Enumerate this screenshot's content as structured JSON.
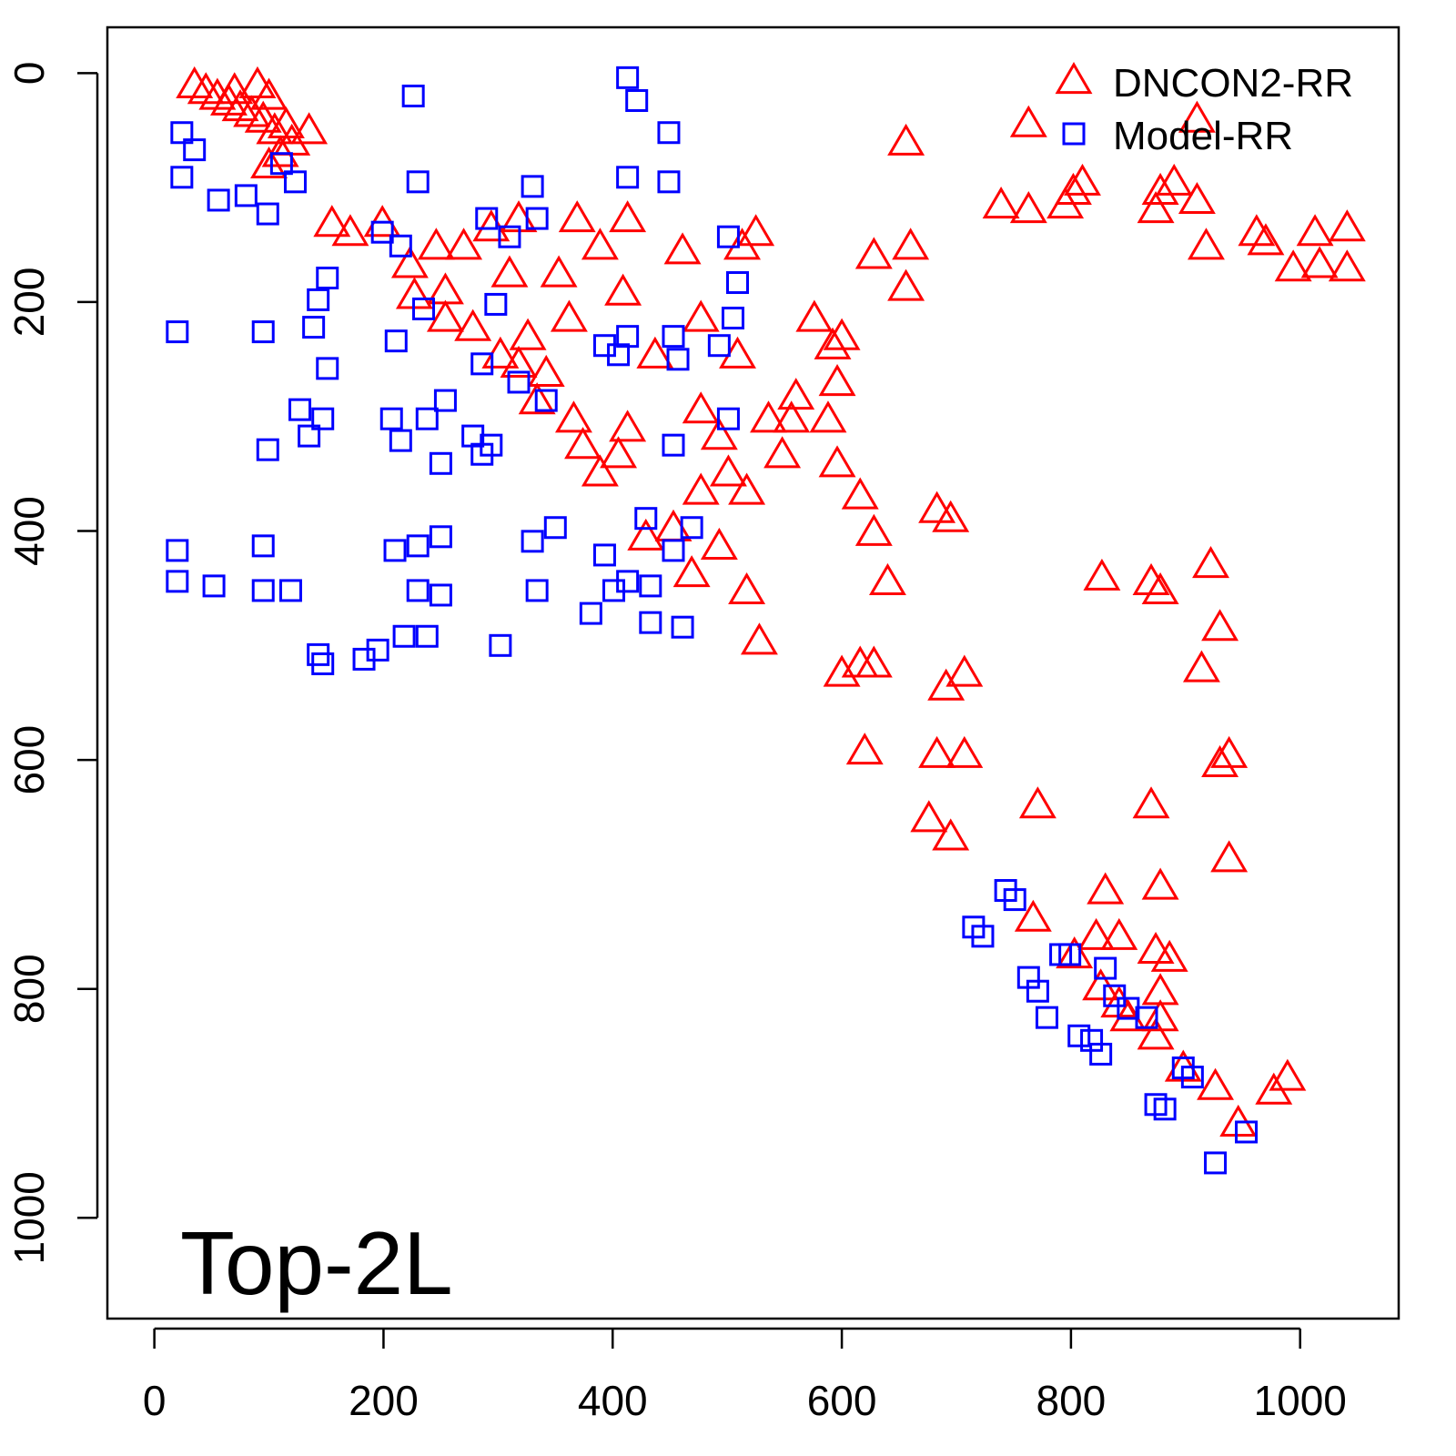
{
  "chart_data": {
    "type": "scatter",
    "title": "",
    "annotation": "Top-2L",
    "xlabel": "",
    "ylabel": "",
    "xlim": [
      -41,
      1086
    ],
    "ylim": [
      1088,
      -40
    ],
    "y_inverted": true,
    "grid": false,
    "legend_placement": "top-right",
    "xticks": [
      0,
      200,
      400,
      600,
      800,
      1000
    ],
    "yticks": [
      0,
      200,
      400,
      600,
      800,
      1000
    ],
    "xtick_labels": [
      "0",
      "200",
      "400",
      "600",
      "800",
      "1000"
    ],
    "ytick_labels": [
      "0",
      "200",
      "400",
      "600",
      "800",
      "1000"
    ],
    "series": [
      {
        "name": "DNCON2-RR",
        "marker": "triangle",
        "color": "#ff0000",
        "points": [
          [
            35,
            10
          ],
          [
            45,
            15
          ],
          [
            55,
            20
          ],
          [
            65,
            25
          ],
          [
            75,
            30
          ],
          [
            85,
            35
          ],
          [
            95,
            40
          ],
          [
            100,
            20
          ],
          [
            105,
            50
          ],
          [
            115,
            45
          ],
          [
            120,
            60
          ],
          [
            135,
            50
          ],
          [
            90,
            10
          ],
          [
            70,
            15
          ],
          [
            110,
            70
          ],
          [
            100,
            80
          ],
          [
            763,
            44
          ],
          [
            656,
            60
          ],
          [
            910,
            40
          ],
          [
            890,
            95
          ],
          [
            810,
            95
          ],
          [
            802,
            103
          ],
          [
            739,
            115
          ],
          [
            763,
            119
          ],
          [
            795,
            115
          ],
          [
            878,
            103
          ],
          [
            874,
            119
          ],
          [
            910,
            111
          ],
          [
            918,
            151
          ],
          [
            970,
            147
          ],
          [
            962,
            139
          ],
          [
            994,
            170
          ],
          [
            1013,
            139
          ],
          [
            1017,
            167
          ],
          [
            1041,
            135
          ],
          [
            1041,
            170
          ],
          [
            628,
            159
          ],
          [
            660,
            151
          ],
          [
            656,
            187
          ],
          [
            525,
            139
          ],
          [
            513,
            151
          ],
          [
            461,
            155
          ],
          [
            477,
            214
          ],
          [
            509,
            246
          ],
          [
            413,
            127
          ],
          [
            389,
            151
          ],
          [
            369,
            127
          ],
          [
            353,
            175
          ],
          [
            310,
            175
          ],
          [
            318,
            127
          ],
          [
            294,
            135
          ],
          [
            270,
            151
          ],
          [
            246,
            151
          ],
          [
            199,
            131
          ],
          [
            171,
            139
          ],
          [
            155,
            131
          ],
          [
            223,
            167
          ],
          [
            227,
            194
          ],
          [
            254,
            214
          ],
          [
            278,
            222
          ],
          [
            302,
            246
          ],
          [
            326,
            230
          ],
          [
            342,
            262
          ],
          [
            362,
            214
          ],
          [
            334,
            286
          ],
          [
            318,
            254
          ],
          [
            366,
            302
          ],
          [
            374,
            325
          ],
          [
            389,
            349
          ],
          [
            405,
            333
          ],
          [
            413,
            310
          ],
          [
            409,
            191
          ],
          [
            437,
            246
          ],
          [
            477,
            294
          ],
          [
            493,
            317
          ],
          [
            501,
            349
          ],
          [
            517,
            365
          ],
          [
            536,
            302
          ],
          [
            556,
            302
          ],
          [
            560,
            282
          ],
          [
            548,
            333
          ],
          [
            588,
            302
          ],
          [
            576,
            214
          ],
          [
            592,
            238
          ],
          [
            600,
            230
          ],
          [
            596,
            270
          ],
          [
            596,
            341
          ],
          [
            616,
            369
          ],
          [
            628,
            401
          ],
          [
            640,
            444
          ],
          [
            477,
            365
          ],
          [
            453,
            397
          ],
          [
            429,
            405
          ],
          [
            469,
            437
          ],
          [
            493,
            413
          ],
          [
            517,
            452
          ],
          [
            528,
            496
          ],
          [
            600,
            524
          ],
          [
            616,
            516
          ],
          [
            628,
            516
          ],
          [
            620,
            592
          ],
          [
            691,
            536
          ],
          [
            707,
            524
          ],
          [
            683,
            595
          ],
          [
            707,
            595
          ],
          [
            676,
            651
          ],
          [
            695,
            667
          ],
          [
            683,
            381
          ],
          [
            695,
            389
          ],
          [
            254,
            190
          ],
          [
            827,
            440
          ],
          [
            870,
            444
          ],
          [
            878,
            452
          ],
          [
            922,
            429
          ],
          [
            930,
            484
          ],
          [
            914,
            520
          ],
          [
            938,
            595
          ],
          [
            930,
            603
          ],
          [
            771,
            639
          ],
          [
            870,
            639
          ],
          [
            938,
            686
          ],
          [
            878,
            710
          ],
          [
            830,
            714
          ],
          [
            767,
            738
          ],
          [
            822,
            754
          ],
          [
            842,
            754
          ],
          [
            803,
            770
          ],
          [
            874,
            766
          ],
          [
            886,
            773
          ],
          [
            826,
            798
          ],
          [
            878,
            802
          ],
          [
            842,
            813
          ],
          [
            850,
            825
          ],
          [
            878,
            825
          ],
          [
            874,
            841
          ],
          [
            898,
            869
          ],
          [
            926,
            885
          ],
          [
            946,
            917
          ],
          [
            977,
            889
          ],
          [
            989,
            877
          ]
        ]
      },
      {
        "name": "Model-RR",
        "marker": "square",
        "color": "#0000ff",
        "points": [
          [
            24,
            52
          ],
          [
            35,
            67
          ],
          [
            24,
            91
          ],
          [
            56,
            111
          ],
          [
            80,
            107
          ],
          [
            99,
            123
          ],
          [
            123,
            95
          ],
          [
            111,
            79
          ],
          [
            20,
            226
          ],
          [
            95,
            226
          ],
          [
            226,
            20
          ],
          [
            230,
            95
          ],
          [
            151,
            179
          ],
          [
            143,
            198
          ],
          [
            139,
            222
          ],
          [
            151,
            258
          ],
          [
            127,
            294
          ],
          [
            135,
            317
          ],
          [
            147,
            302
          ],
          [
            99,
            329
          ],
          [
            207,
            302
          ],
          [
            215,
            321
          ],
          [
            238,
            302
          ],
          [
            254,
            286
          ],
          [
            250,
            341
          ],
          [
            278,
            317
          ],
          [
            286,
            333
          ],
          [
            294,
            325
          ],
          [
            199,
            139
          ],
          [
            215,
            151
          ],
          [
            211,
            234
          ],
          [
            235,
            206
          ],
          [
            290,
            127
          ],
          [
            310,
            143
          ],
          [
            330,
            99
          ],
          [
            334,
            127
          ],
          [
            298,
            202
          ],
          [
            286,
            254
          ],
          [
            318,
            270
          ],
          [
            342,
            286
          ],
          [
            413,
            4
          ],
          [
            421,
            24
          ],
          [
            449,
            52
          ],
          [
            413,
            91
          ],
          [
            449,
            95
          ],
          [
            501,
            143
          ],
          [
            509,
            183
          ],
          [
            505,
            214
          ],
          [
            493,
            238
          ],
          [
            453,
            230
          ],
          [
            457,
            250
          ],
          [
            413,
            230
          ],
          [
            393,
            238
          ],
          [
            405,
            246
          ],
          [
            453,
            325
          ],
          [
            501,
            302
          ],
          [
            20,
            417
          ],
          [
            20,
            444
          ],
          [
            52,
            448
          ],
          [
            95,
            413
          ],
          [
            95,
            452
          ],
          [
            119,
            452
          ],
          [
            210,
            417
          ],
          [
            230,
            413
          ],
          [
            250,
            405
          ],
          [
            230,
            452
          ],
          [
            250,
            456
          ],
          [
            143,
            508
          ],
          [
            147,
            516
          ],
          [
            183,
            512
          ],
          [
            195,
            504
          ],
          [
            218,
            492
          ],
          [
            238,
            492
          ],
          [
            302,
            500
          ],
          [
            334,
            452
          ],
          [
            350,
            397
          ],
          [
            330,
            409
          ],
          [
            393,
            421
          ],
          [
            381,
            472
          ],
          [
            401,
            452
          ],
          [
            413,
            444
          ],
          [
            433,
            448
          ],
          [
            433,
            480
          ],
          [
            461,
            484
          ],
          [
            429,
            389
          ],
          [
            453,
            417
          ],
          [
            469,
            397
          ],
          [
            743,
            714
          ],
          [
            751,
            722
          ],
          [
            715,
            746
          ],
          [
            723,
            754
          ],
          [
            763,
            790
          ],
          [
            771,
            802
          ],
          [
            779,
            825
          ],
          [
            791,
            770
          ],
          [
            799,
            770
          ],
          [
            830,
            782
          ],
          [
            807,
            841
          ],
          [
            818,
            845
          ],
          [
            826,
            857
          ],
          [
            838,
            806
          ],
          [
            850,
            817
          ],
          [
            866,
            825
          ],
          [
            874,
            901
          ],
          [
            882,
            905
          ],
          [
            898,
            869
          ],
          [
            906,
            877
          ],
          [
            926,
            952
          ],
          [
            953,
            925
          ]
        ]
      }
    ]
  }
}
